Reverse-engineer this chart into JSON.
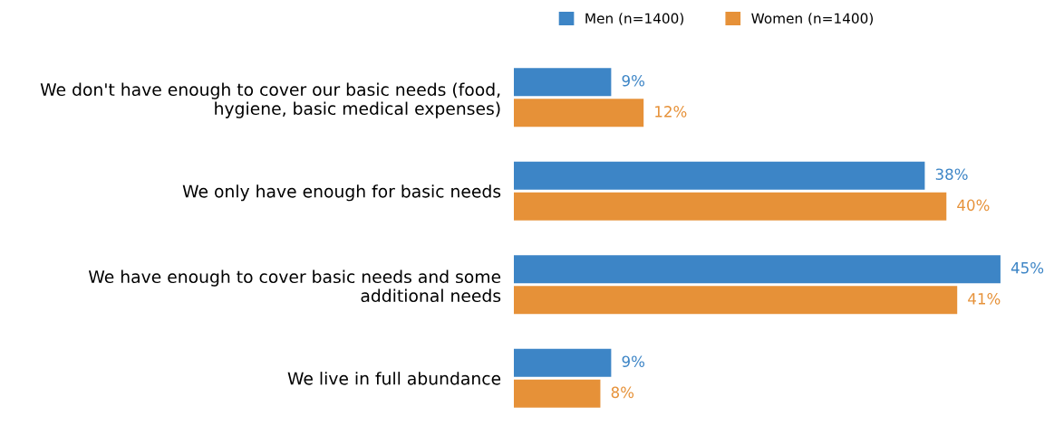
{
  "chart_data": {
    "type": "bar",
    "orientation": "horizontal",
    "categories": [
      "We don't have enough to cover our basic needs (food,\nhygiene, basic medical expenses)",
      "We only have enough for basic needs",
      "We have enough to cover basic needs and some\nadditional needs",
      "We live in full abundance"
    ],
    "series": [
      {
        "name": "Men (n=1400)",
        "color": "#3d85c6",
        "values": [
          9,
          38,
          45,
          9
        ],
        "value_labels": [
          "9%",
          "38%",
          "45%",
          "9%"
        ]
      },
      {
        "name": "Women (n=1400)",
        "color": "#e69138",
        "values": [
          12,
          40,
          41,
          8
        ],
        "value_labels": [
          "12%",
          "40%",
          "41%",
          "8%"
        ]
      }
    ],
    "tick_labels": "y",
    "grid": false,
    "legend": "top"
  }
}
